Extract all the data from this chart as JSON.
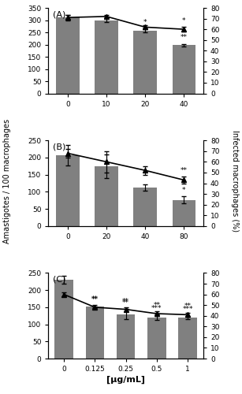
{
  "panels": [
    {
      "label": "(A)",
      "x_ticks": [
        0,
        10,
        20,
        40
      ],
      "bar_values": [
        310,
        300,
        258,
        198
      ],
      "bar_errors": [
        12,
        8,
        8,
        5
      ],
      "line_values": [
        71,
        72,
        62,
        60
      ],
      "line_errors": [
        2,
        1,
        2,
        2
      ],
      "bar_annotations": [
        "",
        "",
        "*",
        "**"
      ],
      "line_annotations": [
        "",
        "",
        "",
        "*"
      ],
      "ylim_left": [
        0,
        350
      ],
      "ylim_right": [
        0,
        80
      ],
      "yticks_left": [
        0,
        50,
        100,
        150,
        200,
        250,
        300,
        350
      ],
      "yticks_right": [
        0,
        10,
        20,
        30,
        40,
        50,
        60,
        70,
        80
      ]
    },
    {
      "label": "(B)",
      "x_ticks": [
        0,
        20,
        40,
        80
      ],
      "bar_values": [
        207,
        175,
        112,
        76
      ],
      "bar_errors": [
        30,
        35,
        10,
        10
      ],
      "line_values": [
        68,
        60,
        52,
        43
      ],
      "line_errors": [
        4,
        10,
        4,
        3
      ],
      "bar_annotations": [
        "",
        "",
        "",
        "*"
      ],
      "line_annotations": [
        "",
        "",
        "",
        "**"
      ],
      "ylim_left": [
        0,
        250
      ],
      "ylim_right": [
        0,
        80
      ],
      "yticks_left": [
        0,
        50,
        100,
        150,
        200,
        250
      ],
      "yticks_right": [
        0,
        10,
        20,
        30,
        40,
        50,
        60,
        70,
        80
      ]
    },
    {
      "label": "(C)",
      "x_ticks": [
        0,
        0.125,
        0.25,
        0.5,
        1
      ],
      "x_tick_labels": [
        "0",
        "0.125",
        "0.25",
        "0.5",
        "1"
      ],
      "bar_values": [
        230,
        152,
        130,
        120,
        120
      ],
      "bar_errors": [
        12,
        5,
        15,
        8,
        5
      ],
      "line_values": [
        60,
        48,
        46,
        42,
        41
      ],
      "line_errors": [
        2,
        1,
        2,
        2,
        2
      ],
      "bar_annotations": [
        "",
        "**",
        "**",
        "***",
        "***"
      ],
      "line_annotations": [
        "",
        "**",
        "**",
        "**",
        "**"
      ],
      "ylim_left": [
        0,
        250
      ],
      "ylim_right": [
        0,
        80
      ],
      "yticks_left": [
        0,
        50,
        100,
        150,
        200,
        250
      ],
      "yticks_right": [
        0,
        10,
        20,
        30,
        40,
        50,
        60,
        70,
        80
      ]
    }
  ],
  "bar_color": "#808080",
  "line_color": "#000000",
  "marker": "^",
  "marker_size": 4,
  "ylabel_left": "Amastigotes / 100 macrophages",
  "ylabel_right": "Infected macrophages (%)",
  "xlabel": "[μg/mL]"
}
